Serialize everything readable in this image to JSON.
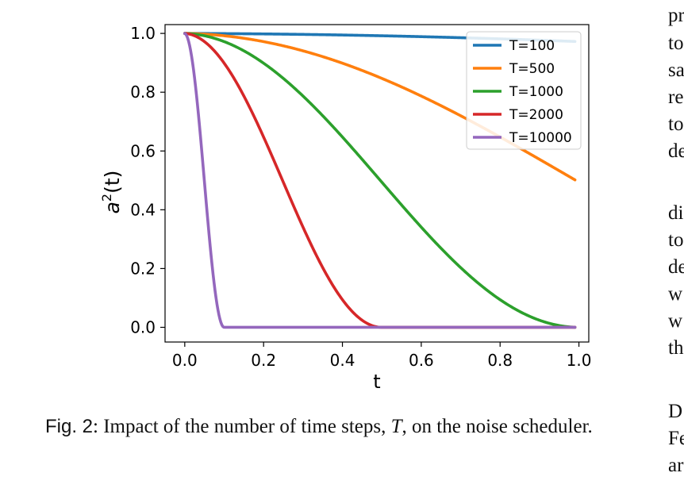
{
  "chart_data": {
    "type": "line",
    "xlabel": "t",
    "ylabel": "a",
    "ylabel_sup": "2",
    "ylabel_tail": "(t)",
    "xlim": [
      -0.05,
      1.025
    ],
    "ylim": [
      -0.05,
      1.03
    ],
    "x_ticks": [
      "0.0",
      "0.2",
      "0.4",
      "0.6",
      "0.8",
      "1.0"
    ],
    "y_ticks": [
      "0.0",
      "0.2",
      "0.4",
      "0.6",
      "0.8",
      "1.0"
    ],
    "x_domain": [
      0,
      0.99
    ],
    "legend_position": "top-right",
    "series": [
      {
        "name": "T=100",
        "T": 100,
        "color": "#1f77b4"
      },
      {
        "name": "T=500",
        "T": 500,
        "color": "#ff7f0e"
      },
      {
        "name": "T=1000",
        "T": 1000,
        "color": "#2ca02c"
      },
      {
        "name": "T=2000",
        "T": 2000,
        "color": "#d62728"
      },
      {
        "name": "T=10000",
        "T": 10000,
        "color": "#9467bd"
      }
    ]
  },
  "caption": {
    "label": "Fig. 2",
    "text_before": ": Impact of the number of time steps, ",
    "symbol": "T",
    "text_after": ", on the noise scheduler."
  },
  "right_column_fragments": [
    "pr",
    "to",
    "sa",
    "re",
    "to",
    "de",
    "di",
    "to",
    "de",
    "w",
    "w",
    "th",
    "D",
    "Fe",
    "ar"
  ]
}
